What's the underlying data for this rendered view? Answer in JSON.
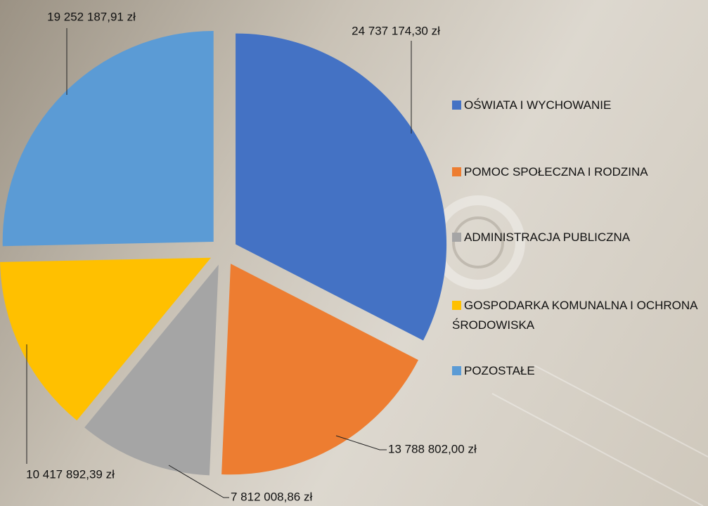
{
  "chart_data": {
    "type": "pie",
    "categories": [
      "OŚWIATA I WYCHOWANIE",
      "POMOC SPOŁECZNA I RODZINA",
      "ADMINISTRACJA PUBLICZNA",
      "GOSPODARKA KOMUNALNA I OCHRONA ŚRODOWISKA",
      "POZOSTAŁE"
    ],
    "values": [
      24737174.3,
      13788802.0,
      7812008.86,
      10417892.39,
      19252187.91
    ],
    "value_labels": [
      "24 737 174,30 zł",
      "13 788 802,00 zł",
      "7 812 008,86 zł",
      "10 417 892,39 zł",
      "19 252 187,91 zł"
    ],
    "colors": [
      "#4472c4",
      "#ed7d31",
      "#a5a5a5",
      "#ffc000",
      "#5b9bd5"
    ],
    "legend": "right"
  }
}
